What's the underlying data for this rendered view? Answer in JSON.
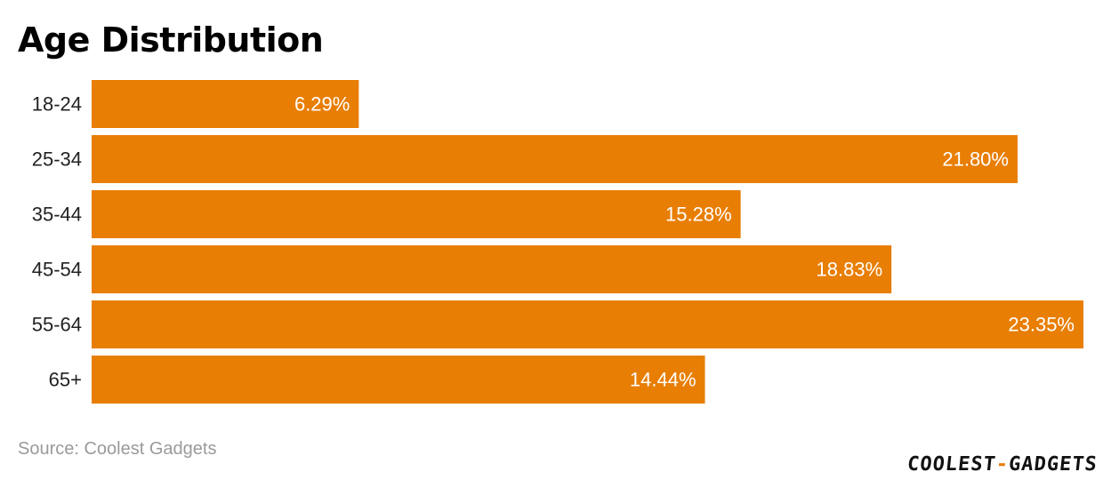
{
  "title": "Age Distribution",
  "source": "Source: Coolest Gadgets",
  "brand": {
    "part1": "COOLEST",
    "separator": "-",
    "part2": "GADGETS",
    "accent_color": "#e87e04"
  },
  "chart_data": {
    "type": "bar",
    "orientation": "horizontal",
    "categories": [
      "18-24",
      "25-34",
      "35-44",
      "45-54",
      "55-64",
      "65+"
    ],
    "values": [
      6.29,
      21.8,
      15.28,
      18.83,
      23.35,
      14.44
    ],
    "value_labels": [
      "6.29%",
      "21.80%",
      "15.28%",
      "18.83%",
      "23.35%",
      "14.44%"
    ],
    "title": "Age Distribution",
    "xlabel": "",
    "ylabel": "",
    "xlim": [
      0,
      23.35
    ],
    "grid": false,
    "legend": "none",
    "bar_color": "#e87e04"
  }
}
